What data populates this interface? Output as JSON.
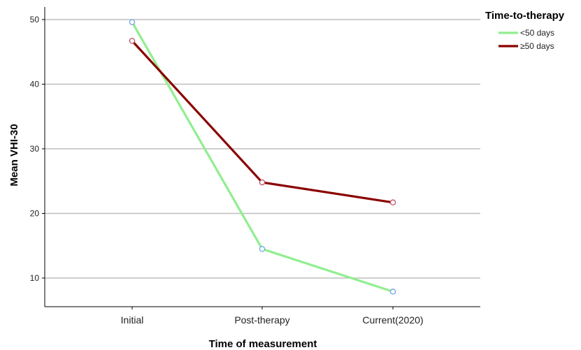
{
  "chart_data": {
    "type": "line",
    "categories": [
      "Initial",
      "Post-therapy",
      "Current(2020)"
    ],
    "xlabel": "Time of measurement",
    "ylabel": "Mean VHI-30",
    "ylim": [
      5,
      52
    ],
    "yticks": [
      10,
      20,
      30,
      40,
      50
    ],
    "grid": "horizontal",
    "legend": {
      "title": "Time-to-therapy",
      "placement": "top-right"
    },
    "series": [
      {
        "name": "<50 days",
        "values": [
          49.6,
          14.5,
          7.9
        ],
        "color": "#90ee90",
        "marker_color": "#6fa8dc"
      },
      {
        "name": "≥50 days",
        "values": [
          46.7,
          24.8,
          21.7
        ],
        "color": "#8b0000",
        "marker_color": "#c0506a"
      }
    ]
  }
}
